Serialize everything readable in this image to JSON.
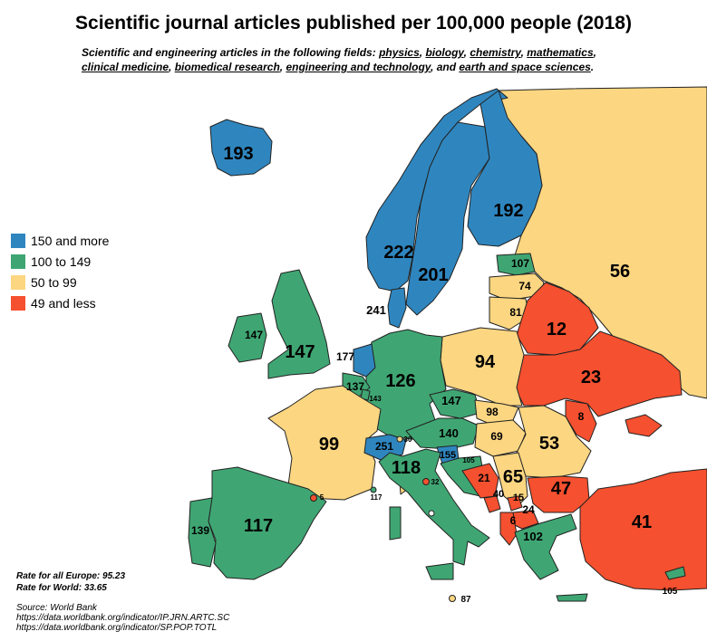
{
  "title": "Scientific journal articles published per 100,000 people (2018)",
  "subtitle": {
    "prefix": "Scientific and engineering articles in the following fields: ",
    "fields": [
      "physics",
      "biology",
      "chemistry",
      "mathematics",
      "clinical medicine",
      "biomedical research",
      "engineering and technology",
      "earth and space sciences"
    ],
    "sep1": ", ",
    "sep2": ", ",
    "sep3": ", ",
    "sep4": ",",
    "sep5": ", ",
    "sep6": ", ",
    "and": ", and ",
    "suffix": "."
  },
  "legend": [
    {
      "label": "150 and more",
      "color": "#2f86bf"
    },
    {
      "label": "100 to 149",
      "color": "#3fa673"
    },
    {
      "label": "50 to 99",
      "color": "#fcd681"
    },
    {
      "label": "49 and less",
      "color": "#f5502f"
    }
  ],
  "countries": {
    "iceland": "193",
    "norway": "222",
    "sweden": "201",
    "finland": "192",
    "denmark": "241",
    "russia": "56",
    "estonia": "107",
    "latvia": "74",
    "lithuania": "81",
    "belarus": "12",
    "ukraine": "23",
    "moldova": "8",
    "poland": "94",
    "germany": "126",
    "netherlands": "177",
    "belgium": "137",
    "luxembourg": "143",
    "uk": "147",
    "ireland": "147",
    "france": "99",
    "spain": "117",
    "portugal": "139",
    "andorra": "5",
    "monaco": "117",
    "switzerland": "251",
    "liechtenstein": "30",
    "austria": "140",
    "czechia": "147",
    "slovakia": "98",
    "hungary": "69",
    "slovenia": "155",
    "croatia": "105",
    "romania": "53",
    "serbia": "65",
    "bosnia": "21",
    "montenegro": "40",
    "kosovo": "15",
    "north_macedonia": "24",
    "albania": "6",
    "bulgaria": "47",
    "greece": "102",
    "turkey": "41",
    "italy": "118",
    "san_marino": "32",
    "malta": "87",
    "cyprus": "105"
  },
  "notes": {
    "europe_rate": "Rate for all Europe: 95.23",
    "world_rate": "Rate for World: 33.65",
    "source": "Source: World Bank",
    "url1": "https://data.worldbank.org/indicator/IP.JRN.ARTC.SC",
    "url2": "https://data.worldbank.org/indicator/SP.POP.TOTL"
  }
}
